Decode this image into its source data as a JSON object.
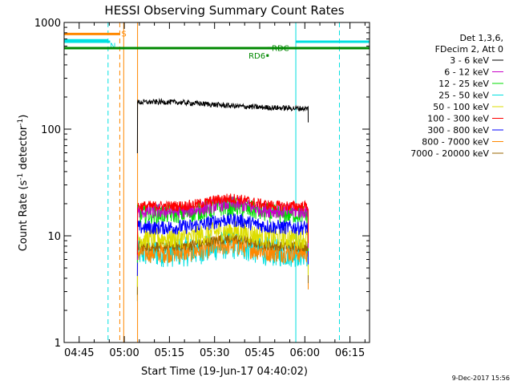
{
  "chart_data": {
    "type": "line",
    "title": "HESSI Observing Summary Count Rates",
    "xlabel": "Start Time (19-Jun-17 04:40:02)",
    "ylabel": "Count Rate (s",
    "ylabel_sup1": "-1",
    "ylabel_mid": " detector",
    "ylabel_sup2": "-1",
    "ylabel_end": ")",
    "yscale": "log",
    "ylim": [
      1,
      1000
    ],
    "xlim_minutes": [
      0,
      101.5
    ],
    "x_ticks": [
      {
        "m": 5,
        "label": "04:45"
      },
      {
        "m": 20,
        "label": "05:00"
      },
      {
        "m": 35,
        "label": "05:15"
      },
      {
        "m": 50,
        "label": "05:30"
      },
      {
        "m": 65,
        "label": "05:45"
      },
      {
        "m": 80,
        "label": "06:00"
      },
      {
        "m": 95,
        "label": "06:15"
      }
    ],
    "y_ticks": [
      {
        "v": 1,
        "label": "1"
      },
      {
        "v": 10,
        "label": "10"
      },
      {
        "v": 100,
        "label": "100"
      },
      {
        "v": 1000,
        "label": "1000"
      }
    ],
    "legend_header": [
      "Det 1,3,6,",
      "FDecim 2, Att 0"
    ],
    "series": [
      {
        "name": "3 - 6 keV",
        "color": "#000000",
        "level": 170,
        "noise": 0.025
      },
      {
        "name": "6 - 12 keV",
        "color": "#c800c8",
        "level": 17,
        "noise": 0.07
      },
      {
        "name": "12 - 25 keV",
        "color": "#00dd00",
        "level": 16,
        "noise": 0.09
      },
      {
        "name": "25 - 50 keV",
        "color": "#00e0e0",
        "level": 7,
        "noise": 0.14
      },
      {
        "name": "50 - 100 keV",
        "color": "#dddd00",
        "level": 9.5,
        "noise": 0.1
      },
      {
        "name": "100 - 300 keV",
        "color": "#ff0000",
        "level": 19,
        "noise": 0.05
      },
      {
        "name": "300 - 800 keV",
        "color": "#0000ff",
        "level": 12,
        "noise": 0.07
      },
      {
        "name": "800 - 7000 keV",
        "color": "#ff8800",
        "level": 7,
        "noise": 0.1
      },
      {
        "name": "7000 - 20000 keV",
        "color": "#996600",
        "level": 8,
        "noise": 0.05
      }
    ],
    "data_start_m": 24.4,
    "data_end_m": 81.1,
    "vertical_lines": [
      {
        "m": 0,
        "color": "#00e0e0",
        "style": "solid"
      },
      {
        "m": 14.6,
        "color": "#00e0e0",
        "style": "dashed"
      },
      {
        "m": 18.5,
        "color": "#ff8800",
        "style": "dashed"
      },
      {
        "m": 19.8,
        "color": "#ff8800",
        "style": "solid"
      },
      {
        "m": 24.4,
        "color": "#ff8800",
        "style": "solid"
      },
      {
        "m": 77.0,
        "color": "#00e0e0",
        "style": "solid"
      },
      {
        "m": 91.5,
        "color": "#00e0e0",
        "style": "dashed"
      }
    ],
    "flag_bars": [
      {
        "label": "S",
        "color": "#ff8800",
        "m0": 0,
        "m1": 18.5,
        "v": 780,
        "label_m": 19.0,
        "label_v": 790
      },
      {
        "label": "N",
        "color": "#00e0e0",
        "m0": 0,
        "m1": 14.6,
        "v": 680,
        "label_m": 15.2,
        "label_v": 610
      },
      {
        "label": "N",
        "color": "#00e0e0",
        "m0": 0,
        "m1": 15.3,
        "v": 660,
        "label_m": null
      },
      {
        "label": "N",
        "color": "#00e0e0",
        "m0": 77.0,
        "m1": 101.5,
        "v": 660,
        "label_m": null
      },
      {
        "label": "",
        "color": "#008800",
        "m0": 0,
        "m1": 101.5,
        "v": 575,
        "label_m": null
      },
      {
        "label": "RD6",
        "color": "#008800",
        "m0": 67.4,
        "m1": 67.9,
        "v": 490,
        "label_m": 66.9,
        "label_v": 490
      },
      {
        "label": "RDC",
        "color": "#008800",
        "m0": 68.0,
        "m1": 68.0,
        "v": 575,
        "label_m": 69.0,
        "label_v": 580
      }
    ]
  },
  "footer_date": "9-Dec-2017 15:56"
}
